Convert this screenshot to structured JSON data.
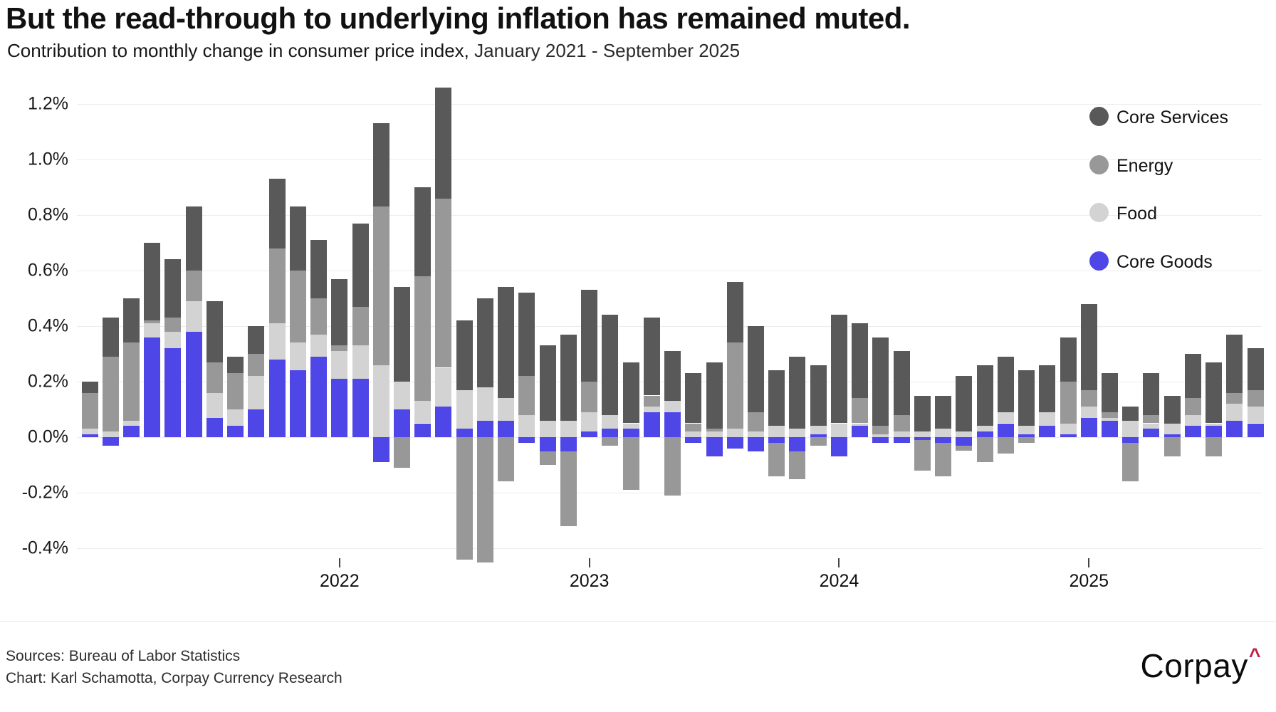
{
  "header": {
    "title": "But the read-through to underlying inflation has remained muted.",
    "subtitle_main": "Contribution to monthly change in consumer price index,",
    "subtitle_range": " January 2021 - September 2025"
  },
  "colors": {
    "core_services": "#595959",
    "energy": "#989898",
    "food": "#d3d3d3",
    "core_goods": "#4f46e8",
    "gridline": "#ececec",
    "logo_caret": "#c01f45"
  },
  "legend": [
    {
      "label": "Core Services",
      "color_key": "core_services"
    },
    {
      "label": "Energy",
      "color_key": "energy"
    },
    {
      "label": "Food",
      "color_key": "food"
    },
    {
      "label": "Core Goods",
      "color_key": "core_goods"
    }
  ],
  "y_axis": {
    "tick_labels": [
      "1.2%",
      "1.0%",
      "0.8%",
      "0.6%",
      "0.4%",
      "0.2%",
      "0.0%",
      "-0.2%",
      "-0.4%"
    ],
    "tick_values": [
      1.2,
      1.0,
      0.8,
      0.6,
      0.4,
      0.2,
      0.0,
      -0.2,
      -0.4
    ]
  },
  "x_axis": {
    "year_ticks": [
      {
        "label": "2022",
        "month_index": 12
      },
      {
        "label": "2023",
        "month_index": 24
      },
      {
        "label": "2024",
        "month_index": 36
      },
      {
        "label": "2025",
        "month_index": 48
      }
    ]
  },
  "chart_data": {
    "type": "bar",
    "stacked": true,
    "title": "Contribution to monthly change in consumer price index",
    "x_range": "January 2021 - September 2025",
    "ylim": [
      -0.5,
      1.3
    ],
    "unit": "percentage points",
    "categories": [
      "2021-01",
      "2021-02",
      "2021-03",
      "2021-04",
      "2021-05",
      "2021-06",
      "2021-07",
      "2021-08",
      "2021-09",
      "2021-10",
      "2021-11",
      "2021-12",
      "2022-01",
      "2022-02",
      "2022-03",
      "2022-04",
      "2022-05",
      "2022-06",
      "2022-07",
      "2022-08",
      "2022-09",
      "2022-10",
      "2022-11",
      "2022-12",
      "2023-01",
      "2023-02",
      "2023-03",
      "2023-04",
      "2023-05",
      "2023-06",
      "2023-07",
      "2023-08",
      "2023-09",
      "2023-10",
      "2023-11",
      "2023-12",
      "2024-01",
      "2024-02",
      "2024-03",
      "2024-04",
      "2024-05",
      "2024-06",
      "2024-07",
      "2024-08",
      "2024-09",
      "2024-10",
      "2024-11",
      "2024-12",
      "2025-01",
      "2025-02",
      "2025-03",
      "2025-04",
      "2025-05",
      "2025-06",
      "2025-07",
      "2025-08",
      "2025-09"
    ],
    "series": [
      {
        "name": "Core Goods",
        "color_key": "core_goods",
        "values": [
          0.01,
          -0.03,
          0.04,
          0.36,
          0.32,
          0.38,
          0.07,
          0.04,
          0.1,
          0.28,
          0.24,
          0.29,
          0.21,
          0.21,
          -0.09,
          0.1,
          0.05,
          0.11,
          0.03,
          0.06,
          0.06,
          -0.02,
          -0.05,
          -0.05,
          0.02,
          0.03,
          0.03,
          0.09,
          0.09,
          -0.02,
          -0.07,
          -0.04,
          -0.05,
          -0.02,
          -0.05,
          0.01,
          -0.07,
          0.04,
          -0.02,
          -0.02,
          -0.01,
          -0.02,
          -0.03,
          0.02,
          0.05,
          0.01,
          0.04,
          0.01,
          0.07,
          0.06,
          -0.02,
          0.03,
          0.01,
          0.04,
          0.04,
          0.06,
          0.05
        ]
      },
      {
        "name": "Food",
        "color_key": "food",
        "values": [
          0.02,
          0.02,
          0.02,
          0.05,
          0.06,
          0.11,
          0.09,
          0.06,
          0.12,
          0.13,
          0.1,
          0.08,
          0.1,
          0.12,
          0.26,
          0.1,
          0.08,
          0.14,
          0.14,
          0.12,
          0.08,
          0.08,
          0.06,
          0.06,
          0.07,
          0.05,
          0.02,
          0.02,
          0.04,
          0.02,
          0.02,
          0.03,
          0.02,
          0.04,
          0.03,
          0.03,
          0.05,
          0.01,
          0.01,
          0.02,
          0.02,
          0.03,
          0.02,
          0.02,
          0.04,
          0.03,
          0.05,
          0.04,
          0.04,
          0.01,
          0.06,
          0.02,
          0.04,
          0.04,
          0.01,
          0.06,
          0.06
        ]
      },
      {
        "name": "Energy",
        "color_key": "energy",
        "values": [
          0.13,
          0.27,
          0.28,
          0.01,
          0.05,
          0.11,
          0.11,
          0.13,
          0.08,
          0.27,
          0.26,
          0.13,
          0.02,
          0.14,
          0.57,
          -0.11,
          0.45,
          0.61,
          -0.44,
          -0.45,
          -0.16,
          0.14,
          -0.05,
          -0.27,
          0.11,
          -0.03,
          -0.19,
          0.04,
          -0.21,
          0.03,
          0.01,
          0.31,
          0.07,
          -0.12,
          -0.1,
          -0.03,
          0.0,
          0.09,
          0.03,
          0.06,
          -0.11,
          -0.12,
          -0.02,
          -0.09,
          -0.06,
          -0.02,
          0.0,
          0.15,
          0.06,
          0.02,
          -0.14,
          0.03,
          -0.07,
          0.06,
          -0.07,
          0.04,
          0.06
        ]
      },
      {
        "name": "Core Services",
        "color_key": "core_services",
        "values": [
          0.04,
          0.14,
          0.16,
          0.28,
          0.21,
          0.23,
          0.22,
          0.06,
          0.1,
          0.25,
          0.23,
          0.21,
          0.24,
          0.3,
          0.3,
          0.34,
          0.32,
          0.4,
          0.25,
          0.32,
          0.4,
          0.3,
          0.27,
          0.31,
          0.33,
          0.36,
          0.22,
          0.28,
          0.18,
          0.18,
          0.24,
          0.22,
          0.31,
          0.2,
          0.26,
          0.22,
          0.39,
          0.27,
          0.32,
          0.23,
          0.13,
          0.12,
          0.2,
          0.22,
          0.2,
          0.2,
          0.17,
          0.16,
          0.31,
          0.14,
          0.05,
          0.15,
          0.1,
          0.16,
          0.22,
          0.21,
          0.15
        ]
      }
    ],
    "legend_position": "top-right",
    "grid": true
  },
  "footer": {
    "source_line": "Sources: Bureau of Labor Statistics",
    "chart_line": "Chart: Karl Schamotta, Corpay Currency Research"
  },
  "logo": {
    "text": "Corpay",
    "caret": "^"
  }
}
